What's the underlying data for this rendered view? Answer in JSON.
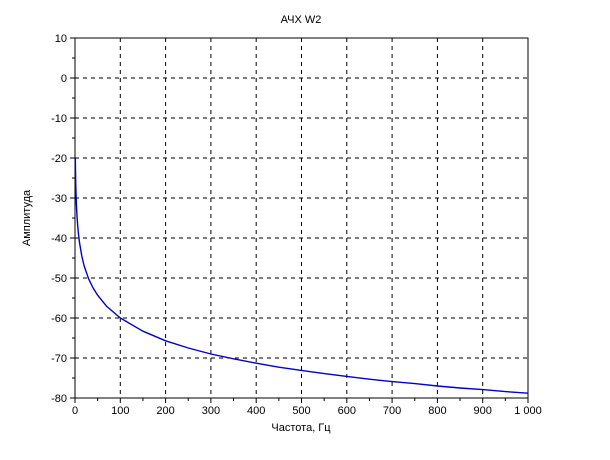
{
  "figure": {
    "background": "#ffffff"
  },
  "chart_data": {
    "type": "line",
    "title": "АЧХ W2",
    "xlabel": "Частота, Гц",
    "ylabel": "Амплитуда",
    "xlim": [
      0,
      1000
    ],
    "ylim": [
      -80,
      10
    ],
    "xticks": [
      0,
      100,
      200,
      300,
      400,
      500,
      600,
      700,
      800,
      900,
      1000
    ],
    "xtick_labels": [
      "0",
      "100",
      "200",
      "300",
      "400",
      "500",
      "600",
      "700",
      "800",
      "900",
      "1 000"
    ],
    "yticks": [
      10,
      0,
      -10,
      -20,
      -30,
      -40,
      -50,
      -60,
      -70,
      -80
    ],
    "ytick_labels": [
      "10",
      "0",
      "-10",
      "-20",
      "-30",
      "-40",
      "-50",
      "-60",
      "-70",
      "-80"
    ],
    "x_minor_ticks": [
      50,
      150,
      250,
      350,
      450,
      550,
      650,
      750,
      850,
      950
    ],
    "y_minor_ticks": [
      5,
      -5,
      -15,
      -25,
      -35,
      -45,
      -55,
      -65,
      -75
    ],
    "grid": "dashed",
    "legend": "none",
    "axis_color": "#000000",
    "grid_color": "#000000",
    "series": [
      {
        "name": "W2",
        "color": "#0000cc",
        "x": [
          0.75,
          1,
          1.5,
          2,
          3,
          4,
          5,
          7,
          10,
          15,
          20,
          30,
          40,
          50,
          70,
          100,
          150,
          200,
          250,
          300,
          350,
          400,
          450,
          500,
          550,
          600,
          650,
          700,
          750,
          800,
          850,
          900,
          950,
          1000
        ],
        "y": [
          -20.1,
          -22.4,
          -25.7,
          -28.1,
          -31.4,
          -33.7,
          -35.5,
          -38.3,
          -41.2,
          -44.5,
          -46.9,
          -50.2,
          -52.5,
          -54.3,
          -57.1,
          -60.0,
          -63.3,
          -65.7,
          -67.5,
          -69.0,
          -70.2,
          -71.3,
          -72.3,
          -73.1,
          -73.9,
          -74.6,
          -75.3,
          -75.9,
          -76.4,
          -77.0,
          -77.5,
          -77.9,
          -78.4,
          -78.8
        ]
      }
    ]
  }
}
